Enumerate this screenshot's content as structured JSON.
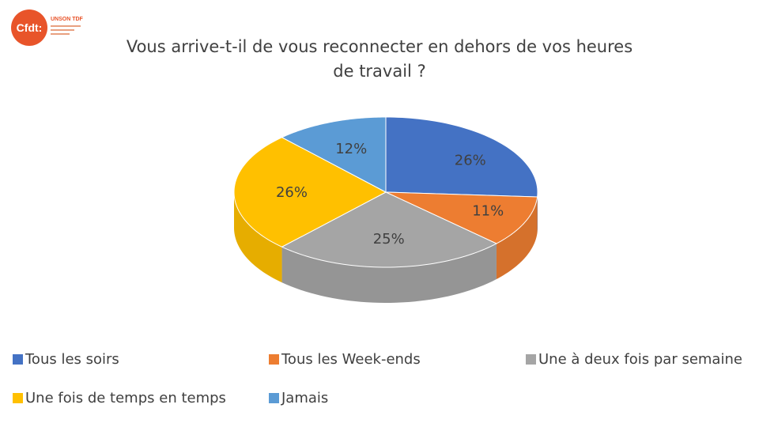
{
  "logo": {
    "mark": "Cfdt:",
    "org": "UNSON TDF"
  },
  "chart_data": {
    "type": "pie",
    "title": "Vous arrive-t-il de vous reconnecter en dehors de vos heures de travail ?",
    "title_lines": [
      "Vous arrive-t-il de vous reconnecter en dehors de vos heures",
      "de travail ?"
    ],
    "categories": [
      "Tous les soirs",
      "Tous les Week-ends",
      "Une à deux fois par semaine",
      "Une fois de temps en temps",
      "Jamais"
    ],
    "values": [
      26,
      11,
      25,
      26,
      12
    ],
    "labels": [
      "26%",
      "11%",
      "25%",
      "26%",
      "12%"
    ],
    "colors": [
      "#4472c4",
      "#ed7d31",
      "#a5a5a5",
      "#ffc000",
      "#5b9bd5"
    ],
    "style": "3d",
    "legend_position": "bottom"
  }
}
